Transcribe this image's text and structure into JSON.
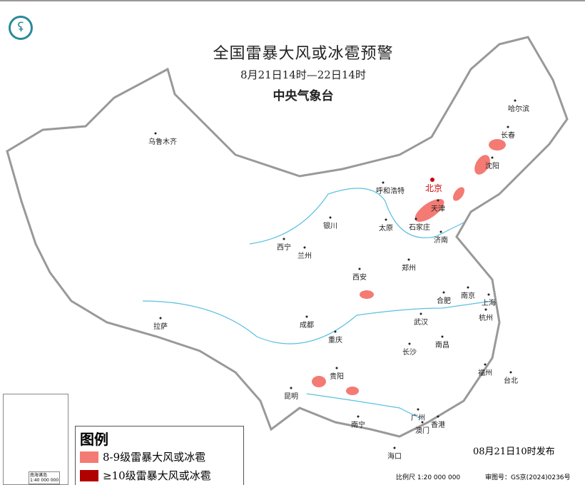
{
  "header": {
    "title": "全国雷暴大风或冰雹预警",
    "period": "8月21日14时—22日14时",
    "agency": "中央气象台"
  },
  "logo": {
    "icon": "cma-logo"
  },
  "cities": [
    {
      "name": "乌鲁木齐"
    },
    {
      "name": "哈尔滨"
    },
    {
      "name": "长春"
    },
    {
      "name": "沈阳"
    },
    {
      "name": "北京",
      "capital": true
    },
    {
      "name": "天津"
    },
    {
      "name": "呼和浩特"
    },
    {
      "name": "石家庄"
    },
    {
      "name": "太原"
    },
    {
      "name": "济南"
    },
    {
      "name": "银川"
    },
    {
      "name": "西宁"
    },
    {
      "name": "兰州"
    },
    {
      "name": "郑州"
    },
    {
      "name": "西安"
    },
    {
      "name": "合肥"
    },
    {
      "name": "南京"
    },
    {
      "name": "上海"
    },
    {
      "name": "杭州"
    },
    {
      "name": "成都"
    },
    {
      "name": "武汉"
    },
    {
      "name": "重庆"
    },
    {
      "name": "长沙"
    },
    {
      "name": "南昌"
    },
    {
      "name": "拉萨"
    },
    {
      "name": "贵阳"
    },
    {
      "name": "福州"
    },
    {
      "name": "台北"
    },
    {
      "name": "昆明"
    },
    {
      "name": "南宁"
    },
    {
      "name": "广州"
    },
    {
      "name": "香港"
    },
    {
      "name": "澳门"
    },
    {
      "name": "海口"
    }
  ],
  "legend": {
    "title": "图例",
    "items": [
      {
        "label": "8-9级雷暴大风或冰雹",
        "color": "#f47a74"
      },
      {
        "label": "≥10级雷暴大风或冰雹",
        "color": "#b00000"
      }
    ]
  },
  "footer": {
    "issued": "08月21日10时发布",
    "scale": "比例尺 1:20 000 000",
    "review": "审图号：GS京(2024)0236号"
  },
  "inset": {
    "label": "南海诸岛",
    "scale": "1:40 000 000"
  }
}
